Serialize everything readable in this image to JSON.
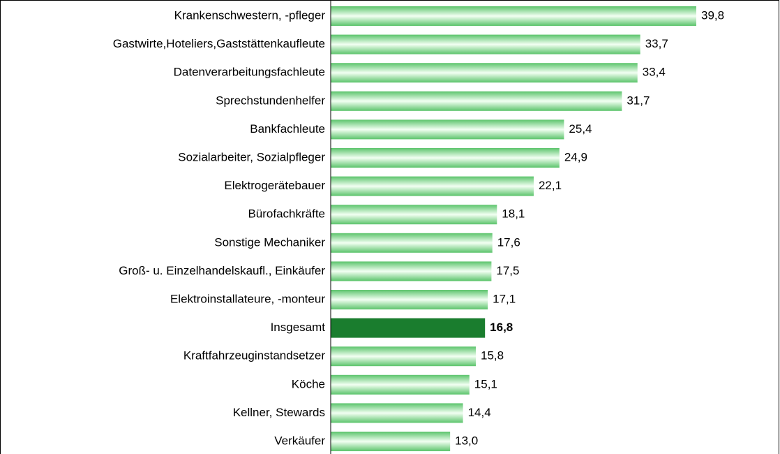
{
  "chart_data": {
    "type": "hbar",
    "categories": [
      "Krankenschwestern, -pfleger",
      "Gastwirte,Hoteliers,Gaststättenkaufleute",
      "Datenverarbeitungsfachleute",
      "Sprechstundenhelfer",
      "Bankfachleute",
      "Sozialarbeiter, Sozialpfleger",
      "Elektrogerätebauer",
      "Bürofachkräfte",
      "Sonstige Mechaniker",
      "Groß- u. Einzelhandelskaufl., Einkäufer",
      "Elektroinstallateure, -monteur",
      "Insgesamt",
      "Kraftfahrzeuginstandsetzer",
      "Köche",
      "Kellner, Stewards",
      "Verkäufer"
    ],
    "values": [
      39.8,
      33.7,
      33.4,
      31.7,
      25.4,
      24.9,
      22.1,
      18.1,
      17.6,
      17.5,
      17.1,
      16.8,
      15.8,
      15.1,
      14.4,
      13.0
    ],
    "value_labels": [
      "39,8",
      "33,7",
      "33,4",
      "31,7",
      "25,4",
      "24,9",
      "22,1",
      "18,1",
      "17,6",
      "17,5",
      "17,1",
      "16,8",
      "15,8",
      "15,1",
      "14,4",
      "13,0"
    ],
    "color": "#5cc46c",
    "highlight": 11,
    "highlight_color": "#1a7d2e"
  }
}
